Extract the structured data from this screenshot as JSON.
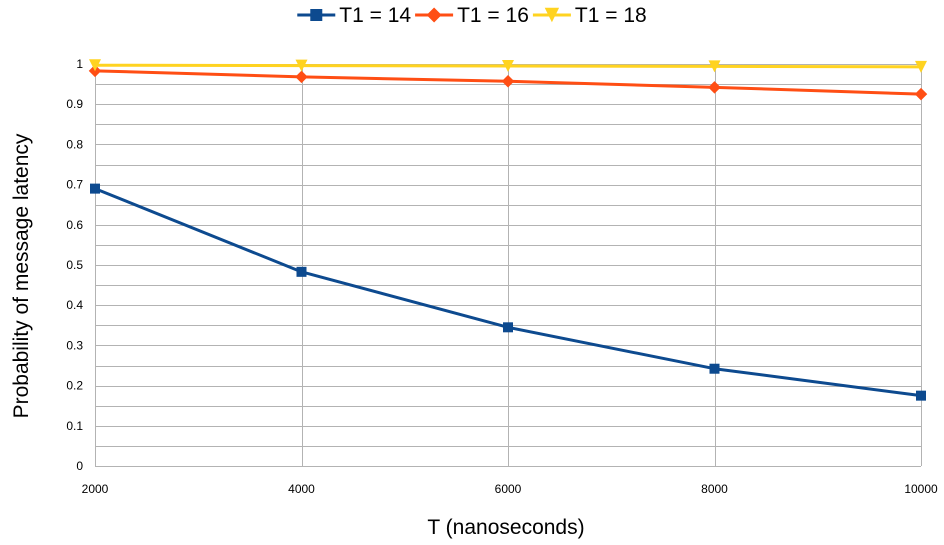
{
  "chart_data": {
    "type": "line",
    "title": "",
    "xlabel": "T (nanoseconds)",
    "ylabel": "Probability of message latency",
    "x": [
      2000,
      4000,
      6000,
      8000,
      10000
    ],
    "x_tick_labels": [
      "2000",
      "4000",
      "6000",
      "8000",
      "10000"
    ],
    "y_tick_labels": [
      "0",
      "0.1",
      "0.2",
      "0.3",
      "0.4",
      "0.5",
      "0.6",
      "0.7",
      "0.8",
      "0.9",
      "1"
    ],
    "xlim": [
      2000,
      10000
    ],
    "ylim": [
      0,
      1
    ],
    "y_major_step": 0.1,
    "y_minor_step": 0.05,
    "grid": true,
    "legend_position": "top",
    "series": [
      {
        "name": "T1 = 14",
        "color": "#0d4a8f",
        "marker": "square",
        "values": [
          0.69,
          0.483,
          0.345,
          0.242,
          0.175
        ]
      },
      {
        "name": "T1 = 16",
        "color": "#ff4e14",
        "marker": "diamond",
        "values": [
          0.983,
          0.968,
          0.957,
          0.942,
          0.925
        ]
      },
      {
        "name": "T1 = 18",
        "color": "#ffd320",
        "marker": "triangle-down",
        "values": [
          0.997,
          0.996,
          0.995,
          0.994,
          0.993
        ]
      }
    ]
  }
}
